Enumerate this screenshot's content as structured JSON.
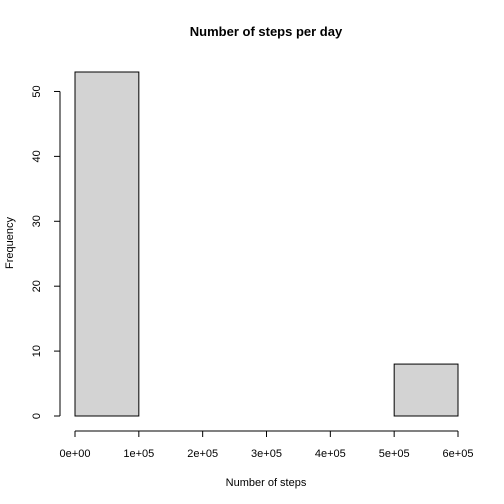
{
  "chart_data": {
    "type": "bar",
    "title": "Number of steps per day",
    "xlabel": "Number of steps",
    "ylabel": "Frequency",
    "bins": [
      {
        "from": 0,
        "to": 100000,
        "count": 53
      },
      {
        "from": 100000,
        "to": 200000,
        "count": 0
      },
      {
        "from": 200000,
        "to": 300000,
        "count": 0
      },
      {
        "from": 300000,
        "to": 400000,
        "count": 0
      },
      {
        "from": 400000,
        "to": 500000,
        "count": 0
      },
      {
        "from": 500000,
        "to": 600000,
        "count": 8
      }
    ],
    "xlim": [
      0,
      600000
    ],
    "ylim": [
      0,
      53
    ],
    "x_ticks": [
      0,
      100000,
      200000,
      300000,
      400000,
      500000,
      600000
    ],
    "x_tick_labels": [
      "0e+00",
      "1e+05",
      "2e+05",
      "3e+05",
      "4e+05",
      "5e+05",
      "6e+05"
    ],
    "y_ticks": [
      0,
      10,
      20,
      30,
      40,
      50
    ],
    "y_tick_labels": [
      "0",
      "10",
      "20",
      "30",
      "40",
      "50"
    ],
    "bar_color": "#d3d3d3",
    "bar_border": "#000000",
    "grid": false
  }
}
